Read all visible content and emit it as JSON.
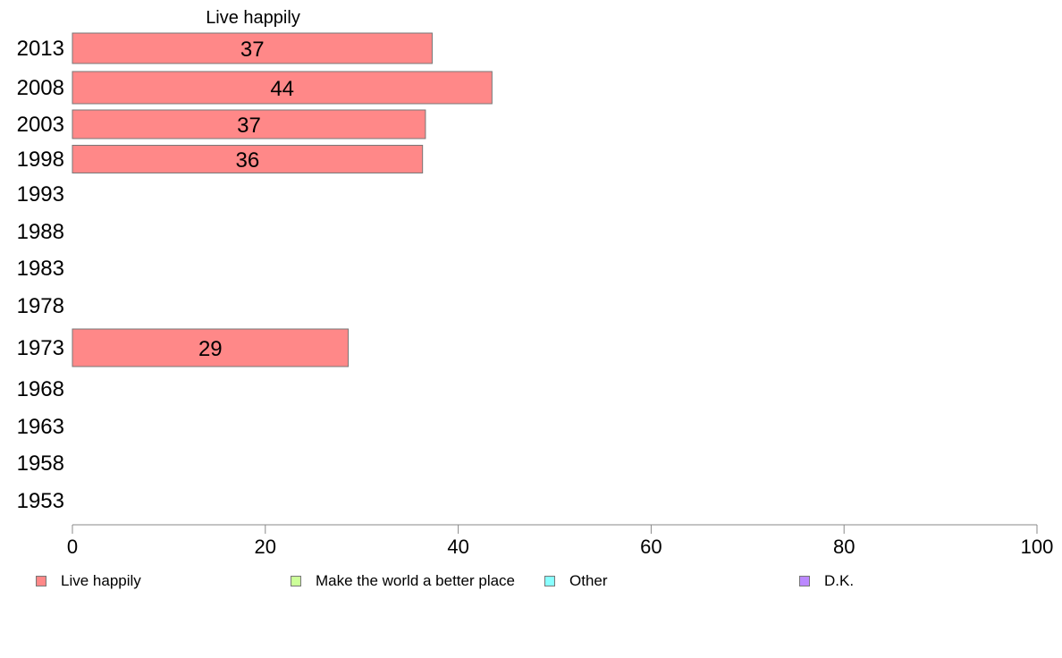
{
  "chart_data": {
    "type": "bar",
    "orientation": "horizontal",
    "title": "Live happily",
    "categories": [
      "2013",
      "2008",
      "2003",
      "1998",
      "1993",
      "1988",
      "1983",
      "1978",
      "1973",
      "1968",
      "1963",
      "1958",
      "1953"
    ],
    "series": [
      {
        "name": "Live happily",
        "color": "#ff8888",
        "values": [
          37.3,
          43.5,
          36.6,
          36.3,
          null,
          null,
          null,
          null,
          28.6,
          null,
          null,
          null,
          null
        ],
        "labels": [
          "37",
          "44",
          "37",
          "36",
          "",
          "",
          "",
          "",
          "29",
          "",
          "",
          "",
          ""
        ]
      }
    ],
    "xlim": [
      0,
      100
    ],
    "xticks": [
      0,
      20,
      40,
      60,
      80,
      100
    ],
    "xtick_labels": [
      "0",
      "20",
      "40",
      "60",
      "80",
      "100"
    ],
    "grid": false,
    "legend_position": "bottom",
    "legend": [
      {
        "label": "Live happily",
        "color": "#ff8888"
      },
      {
        "label": "Make the world a better place",
        "color": "#ccff99"
      },
      {
        "label": "Other",
        "color": "#88ffff"
      },
      {
        "label": "D.K.",
        "color": "#bb88ff"
      }
    ]
  }
}
